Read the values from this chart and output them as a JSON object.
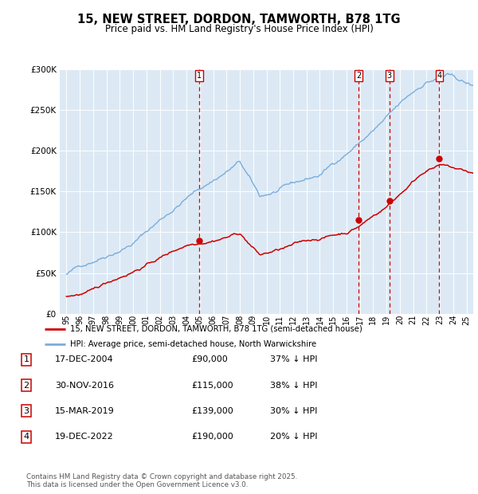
{
  "title": "15, NEW STREET, DORDON, TAMWORTH, B78 1TG",
  "subtitle": "Price paid vs. HM Land Registry's House Price Index (HPI)",
  "legend_line1": "15, NEW STREET, DORDON, TAMWORTH, B78 1TG (semi-detached house)",
  "legend_line2": "HPI: Average price, semi-detached house, North Warwickshire",
  "footnote1": "Contains HM Land Registry data © Crown copyright and database right 2025.",
  "footnote2": "This data is licensed under the Open Government Licence v3.0.",
  "background_color": "#dce9f5",
  "red_line_color": "#cc0000",
  "blue_line_color": "#7aaddb",
  "sale_marker_color": "#cc0000",
  "vline_color": "#cc0000",
  "grid_color": "#ffffff",
  "ylim": [
    0,
    300000
  ],
  "yticks": [
    0,
    50000,
    100000,
    150000,
    200000,
    250000,
    300000
  ],
  "ytick_labels": [
    "£0",
    "£50K",
    "£100K",
    "£150K",
    "£200K",
    "£250K",
    "£300K"
  ],
  "sale_events": [
    {
      "num": 1,
      "date": "17-DEC-2004",
      "price": 90000,
      "pct": "37%",
      "x_year": 2004.96
    },
    {
      "num": 2,
      "date": "30-NOV-2016",
      "price": 115000,
      "pct": "38%",
      "x_year": 2016.92
    },
    {
      "num": 3,
      "date": "15-MAR-2019",
      "price": 139000,
      "pct": "30%",
      "x_year": 2019.21
    },
    {
      "num": 4,
      "date": "19-DEC-2022",
      "price": 190000,
      "pct": "20%",
      "x_year": 2022.96
    }
  ],
  "xlim_start": 1994.5,
  "xlim_end": 2025.5,
  "xtick_years": [
    1995,
    1996,
    1997,
    1998,
    1999,
    2000,
    2001,
    2002,
    2003,
    2004,
    2005,
    2006,
    2007,
    2008,
    2009,
    2010,
    2011,
    2012,
    2013,
    2014,
    2015,
    2016,
    2017,
    2018,
    2019,
    2020,
    2021,
    2022,
    2023,
    2024,
    2025
  ],
  "table_rows": [
    [
      1,
      "17-DEC-2004",
      "£90,000",
      "37% ↓ HPI"
    ],
    [
      2,
      "30-NOV-2016",
      "£115,000",
      "38% ↓ HPI"
    ],
    [
      3,
      "15-MAR-2019",
      "£139,000",
      "30% ↓ HPI"
    ],
    [
      4,
      "19-DEC-2022",
      "£190,000",
      "20% ↓ HPI"
    ]
  ]
}
